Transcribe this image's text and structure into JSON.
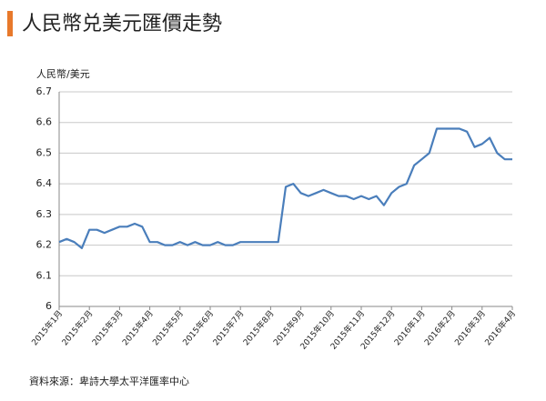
{
  "chart_data": {
    "type": "line",
    "title": "人民幣兑美元匯價走勢",
    "y_label": "人民幣/美元",
    "source": "資料來源：卑詩大學太平洋匯率中心",
    "categories": [
      "2015年1月",
      null,
      null,
      null,
      "2015年2月",
      null,
      null,
      null,
      "2015年3月",
      null,
      null,
      null,
      "2015年4月",
      null,
      null,
      null,
      "2015年5月",
      null,
      null,
      null,
      "2015年6月",
      null,
      null,
      null,
      "2015年7月",
      null,
      null,
      null,
      "2015年8月",
      null,
      null,
      null,
      "2015年9月",
      null,
      null,
      null,
      "2015年10月",
      null,
      null,
      null,
      "2015年11月",
      null,
      null,
      null,
      "2015年12月",
      null,
      null,
      null,
      "2016年1月",
      null,
      null,
      null,
      "2016年2月",
      null,
      null,
      null,
      "2016年3月",
      null,
      null,
      null,
      "2016年4月"
    ],
    "series": [
      {
        "name": "人民幣/美元",
        "color": "#4a7ebb",
        "values": [
          6.21,
          6.22,
          6.21,
          6.19,
          6.25,
          6.25,
          6.24,
          6.25,
          6.26,
          6.26,
          6.27,
          6.26,
          6.21,
          6.21,
          6.2,
          6.2,
          6.21,
          6.2,
          6.21,
          6.2,
          6.2,
          6.21,
          6.2,
          6.2,
          6.21,
          6.21,
          6.21,
          6.21,
          6.21,
          6.21,
          6.39,
          6.4,
          6.37,
          6.36,
          6.37,
          6.38,
          6.37,
          6.36,
          6.36,
          6.35,
          6.36,
          6.35,
          6.36,
          6.33,
          6.37,
          6.39,
          6.4,
          6.46,
          6.48,
          6.5,
          6.58,
          6.58,
          6.58,
          6.58,
          6.57,
          6.52,
          6.53,
          6.55,
          6.5,
          6.48,
          6.48
        ]
      }
    ],
    "ylim": [
      6,
      6.7
    ],
    "yticks": [
      6,
      6.1,
      6.2,
      6.3,
      6.4,
      6.5,
      6.6,
      6.7
    ],
    "grid": true
  }
}
